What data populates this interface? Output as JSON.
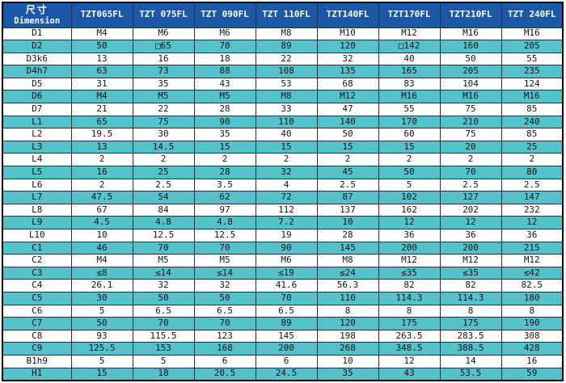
{
  "colors": {
    "header_bg": "#1B58A8",
    "header_text": "#FFFFFF",
    "row_alt_bg": "#54C1CB",
    "row_bg": "#FFFFFF",
    "grid": "#26323A",
    "outer_border": "#000000",
    "cell_text": "#121619"
  },
  "table": {
    "corner": {
      "line1": "尺寸",
      "line2": "Dimension"
    },
    "columns": [
      "TZT065FL",
      "TZT 075FL",
      "TZT 090FL",
      "TZT 110FL",
      "TZT140FL",
      "TZT170FL",
      "TZT210FL",
      "TZT 240FL"
    ],
    "rows": [
      {
        "label": "D1",
        "values": [
          "M4",
          "M6",
          "M6",
          "M8",
          "M10",
          "M12",
          "M16",
          "M16"
        ]
      },
      {
        "label": "D2",
        "values": [
          "50",
          "□65",
          "70",
          "89",
          "120",
          "□142",
          "160",
          "205"
        ]
      },
      {
        "label": "D3k6",
        "values": [
          "13",
          "16",
          "18",
          "22",
          "32",
          "40",
          "50",
          "55"
        ]
      },
      {
        "label": "D4h7",
        "values": [
          "63",
          "73",
          "88",
          "108",
          "135",
          "165",
          "205",
          "235"
        ]
      },
      {
        "label": "D5",
        "values": [
          "31",
          "35",
          "43",
          "53",
          "68",
          "83",
          "104",
          "124"
        ]
      },
      {
        "label": "D6",
        "values": [
          "M4",
          "M5",
          "M5",
          "M8",
          "M12",
          "M16",
          "M16",
          "M16"
        ]
      },
      {
        "label": "D7",
        "values": [
          "21",
          "22",
          "28",
          "33",
          "47",
          "55",
          "75",
          "85"
        ]
      },
      {
        "label": "L1",
        "values": [
          "65",
          "75",
          "90",
          "110",
          "140",
          "170",
          "210",
          "240"
        ]
      },
      {
        "label": "L2",
        "values": [
          "19.5",
          "30",
          "35",
          "40",
          "50",
          "60",
          "75",
          "85"
        ]
      },
      {
        "label": "L3",
        "values": [
          "13",
          "14.5",
          "15",
          "15",
          "15",
          "15",
          "20",
          "25"
        ]
      },
      {
        "label": "L4",
        "values": [
          "2",
          "2",
          "2",
          "2",
          "2",
          "2",
          "2",
          "2"
        ]
      },
      {
        "label": "L5",
        "values": [
          "16",
          "25",
          "28",
          "32",
          "45",
          "50",
          "70",
          "80"
        ]
      },
      {
        "label": "L6",
        "values": [
          "2",
          "2.5",
          "3.5",
          "4",
          "2.5",
          "5",
          "2.5",
          "2.5"
        ]
      },
      {
        "label": "L7",
        "values": [
          "47.5",
          "54",
          "62",
          "72",
          "87",
          "102",
          "127",
          "147"
        ]
      },
      {
        "label": "L8",
        "values": [
          "67",
          "84",
          "97",
          "112",
          "137",
          "162",
          "202",
          "232"
        ]
      },
      {
        "label": "L9",
        "values": [
          "4.5",
          "4.8",
          "4.8",
          "7.2",
          "10",
          "12",
          "12",
          "12"
        ]
      },
      {
        "label": "L10",
        "values": [
          "10",
          "12.5",
          "12.5",
          "19",
          "28",
          "36",
          "36",
          "36"
        ]
      },
      {
        "label": "C1",
        "values": [
          "46",
          "70",
          "70",
          "90",
          "145",
          "200",
          "200",
          "215"
        ]
      },
      {
        "label": "C2",
        "values": [
          "M4",
          "M5",
          "M5",
          "M6",
          "M8",
          "M12",
          "M12",
          "M12"
        ]
      },
      {
        "label": "C3",
        "values": [
          "≤8",
          "≤14",
          "≤14",
          "≤19",
          "≤24",
          "≤35",
          "≤35",
          "≤42"
        ]
      },
      {
        "label": "C4",
        "values": [
          "26.1",
          "32",
          "32",
          "41.6",
          "56.3",
          "82",
          "82",
          "82.5"
        ]
      },
      {
        "label": "C5",
        "values": [
          "30",
          "50",
          "50",
          "70",
          "110",
          "114.3",
          "114.3",
          "180"
        ]
      },
      {
        "label": "C6",
        "values": [
          "5",
          "6.5",
          "6.5",
          "6.5",
          "8",
          "8",
          "8",
          "8"
        ]
      },
      {
        "label": "C7",
        "values": [
          "50",
          "70",
          "70",
          "89",
          "120",
          "175",
          "175",
          "190"
        ]
      },
      {
        "label": "C8",
        "values": [
          "93",
          "115.5",
          "123",
          "145",
          "198",
          "263.5",
          "283.5",
          "308"
        ]
      },
      {
        "label": "C9",
        "values": [
          "125.5",
          "153",
          "168",
          "200",
          "268",
          "348.5",
          "388.5",
          "428"
        ]
      },
      {
        "label": "B1h9",
        "values": [
          "5",
          "5",
          "6",
          "6",
          "10",
          "12",
          "14",
          "16"
        ]
      },
      {
        "label": "H1",
        "values": [
          "15",
          "18",
          "20.5",
          "24.5",
          "35",
          "43",
          "53.5",
          "59"
        ]
      }
    ]
  }
}
